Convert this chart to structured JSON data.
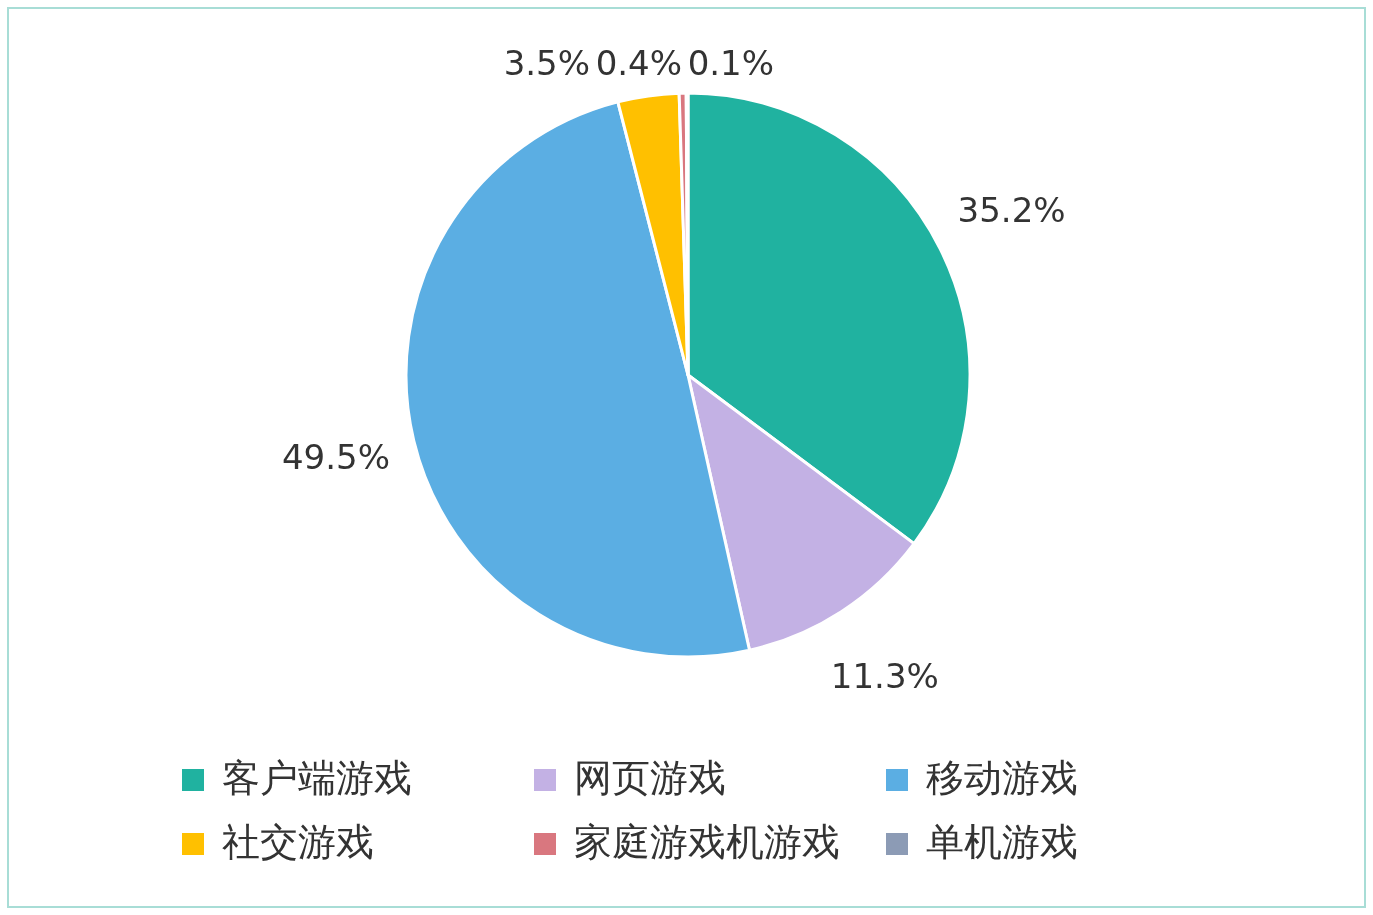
{
  "chart_data": {
    "type": "pie",
    "categories": [
      "客户端游戏",
      "网页游戏",
      "移动游戏",
      "社交游戏",
      "家庭游戏机游戏",
      "单机游戏"
    ],
    "values": [
      35.2,
      11.3,
      49.5,
      3.5,
      0.4,
      0.1
    ],
    "colors": [
      "#20b2a0",
      "#c3b1e4",
      "#5baee3",
      "#ffc000",
      "#d9777f",
      "#8c9bb5"
    ],
    "value_labels": [
      "35.2%",
      "11.3%",
      "49.5%",
      "3.5%",
      "0.4%",
      "0.1%"
    ],
    "legend": "bottom"
  }
}
